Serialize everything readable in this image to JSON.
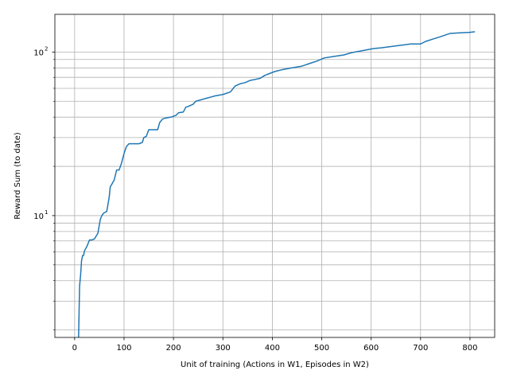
{
  "chart_data": {
    "type": "line",
    "title": "",
    "xlabel": "Unit of training (Actions in W1, Episodes in W2)",
    "ylabel": "Reward Sum (to date)",
    "xlim": [
      -40,
      850
    ],
    "ylim": [
      1.8,
      170
    ],
    "yscale": "log",
    "grid": true,
    "x_ticks": [
      0,
      100,
      200,
      300,
      400,
      500,
      600,
      700,
      800
    ],
    "y_major_ticks": [
      10,
      100
    ],
    "y_major_tick_labels": [
      "10",
      "10"
    ],
    "y_major_tick_exponents": [
      "1",
      "2"
    ],
    "y_minor_ticks": [
      2,
      3,
      4,
      5,
      6,
      7,
      8,
      9,
      20,
      30,
      40,
      50,
      60,
      70,
      80,
      90
    ],
    "line_color": "#1f77b4",
    "series": [
      {
        "name": "",
        "x": [
          8,
          9,
          10,
          11,
          12,
          14,
          16,
          18,
          20,
          25,
          30,
          35,
          40,
          47,
          52,
          55,
          58,
          62,
          65,
          70,
          72,
          75,
          80,
          85,
          90,
          95,
          100,
          105,
          110,
          115,
          120,
          130,
          137,
          140,
          145,
          150,
          160,
          168,
          172,
          178,
          185,
          195,
          205,
          210,
          220,
          225,
          230,
          240,
          245,
          255,
          265,
          275,
          285,
          300,
          315,
          325,
          335,
          345,
          355,
          365,
          375,
          385,
          395,
          405,
          420,
          440,
          460,
          475,
          490,
          505,
          525,
          545,
          560,
          575,
          590,
          605,
          620,
          640,
          660,
          680,
          700,
          710,
          725,
          740,
          760,
          780,
          800,
          810
        ],
        "y": [
          1.8,
          2.6,
          3.7,
          4.0,
          4.3,
          5.3,
          5.7,
          5.7,
          6.1,
          6.5,
          7.1,
          7.1,
          7.2,
          7.8,
          9.5,
          10.0,
          10.3,
          10.5,
          10.6,
          13.0,
          15.0,
          15.5,
          16.5,
          19.0,
          19.0,
          21.0,
          24.0,
          26.5,
          27.5,
          27.5,
          27.5,
          27.5,
          28.0,
          30.0,
          30.5,
          33.5,
          33.5,
          33.5,
          37.0,
          39.0,
          39.5,
          40.0,
          41.0,
          42.5,
          43.0,
          46.0,
          46.5,
          48.0,
          50.0,
          51.0,
          52.0,
          53.0,
          54.0,
          55.0,
          57.0,
          62.0,
          64.0,
          65.0,
          67.0,
          68.0,
          69.0,
          72.0,
          74.0,
          76.0,
          78.0,
          80.0,
          82.0,
          85.0,
          88.0,
          92.0,
          94.0,
          96.0,
          99.0,
          101.0,
          103.0,
          105.0,
          106.0,
          108.0,
          110.0,
          112.0,
          112.0,
          116.0,
          120.0,
          124.0,
          130.0,
          131.0,
          132.0,
          133.0
        ]
      }
    ]
  }
}
